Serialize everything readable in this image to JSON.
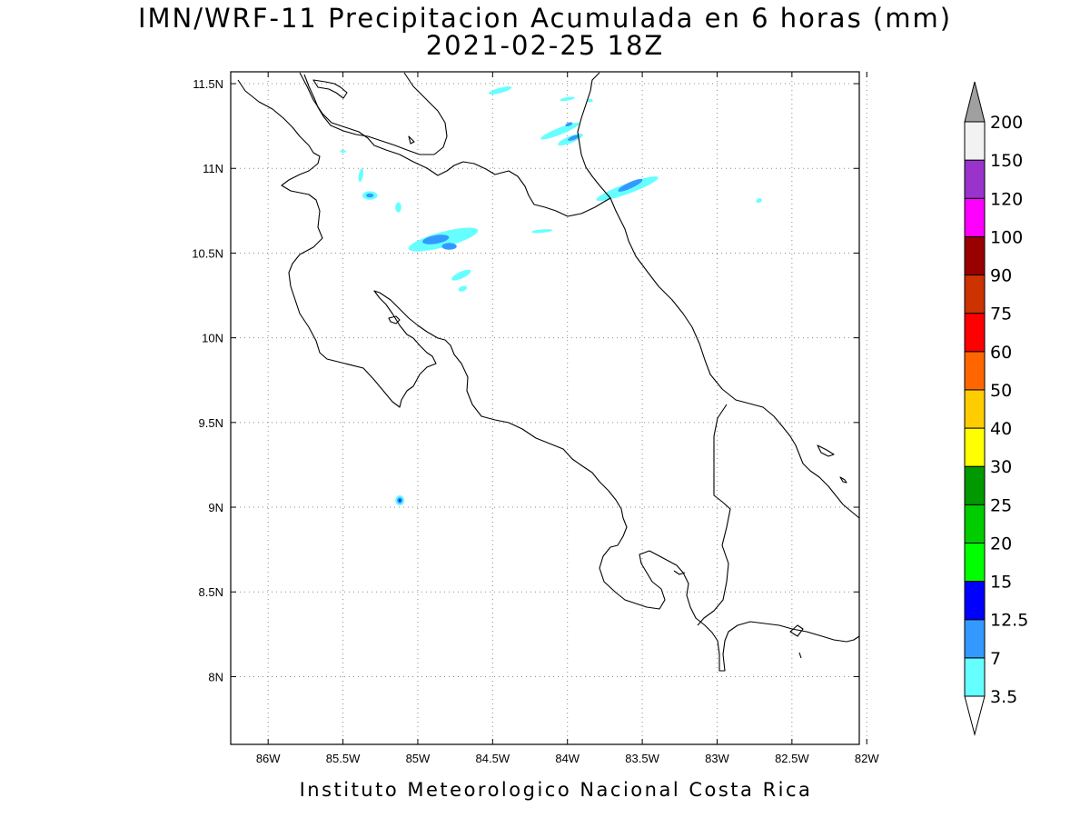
{
  "title": {
    "line1": "IMN/WRF-11 Precipitacion Acumulada en 6 horas (mm)",
    "line2": "2021-02-25 18Z"
  },
  "footer": "Instituto Meteorologico Nacional Costa Rica",
  "map": {
    "lon_range": [
      -86.25,
      -82.05
    ],
    "lat_range": [
      7.6,
      11.57
    ],
    "x_ticks": [
      {
        "value": -86.0,
        "label": "86W"
      },
      {
        "value": -85.5,
        "label": "85.5W"
      },
      {
        "value": -85.0,
        "label": "85W"
      },
      {
        "value": -84.5,
        "label": "84.5W"
      },
      {
        "value": -84.0,
        "label": "84W"
      },
      {
        "value": -83.5,
        "label": "83.5W"
      },
      {
        "value": -83.0,
        "label": "83W"
      },
      {
        "value": -82.5,
        "label": "82.5W"
      },
      {
        "value": -82.0,
        "label": "82W"
      }
    ],
    "y_ticks": [
      {
        "value": 11.5,
        "label": "11.5N"
      },
      {
        "value": 11.0,
        "label": "11N"
      },
      {
        "value": 10.5,
        "label": "10.5N"
      },
      {
        "value": 10.0,
        "label": "10N"
      },
      {
        "value": 9.5,
        "label": "9.5N"
      },
      {
        "value": 9.0,
        "label": "9N"
      },
      {
        "value": 8.5,
        "label": "8.5N"
      },
      {
        "value": 8.0,
        "label": "8N"
      }
    ],
    "grid": true
  },
  "colorbar": {
    "labels": [
      "3.5",
      "7",
      "12.5",
      "15",
      "20",
      "25",
      "30",
      "40",
      "50",
      "60",
      "75",
      "90",
      "100",
      "120",
      "150",
      "200"
    ],
    "colors": [
      "#66ffff",
      "#3399ff",
      "#0000ff",
      "#00ff00",
      "#00cc00",
      "#009900",
      "#ffff00",
      "#ffcc00",
      "#ff6600",
      "#ff0000",
      "#cc3300",
      "#990000",
      "#ff00ff",
      "#9933cc",
      "#f2f2f2",
      "#a0a0a0"
    ]
  },
  "precip_areas": [
    {
      "lon": -84.83,
      "lat": 10.58,
      "rx": 0.24,
      "ry": 0.045,
      "rot": -15,
      "color": "#66ffff"
    },
    {
      "lon": -84.88,
      "lat": 10.58,
      "rx": 0.09,
      "ry": 0.025,
      "rot": -10,
      "color": "#3399ff"
    },
    {
      "lon": -84.79,
      "lat": 10.54,
      "rx": 0.05,
      "ry": 0.02,
      "rot": 0,
      "color": "#3399ff"
    },
    {
      "lon": -85.32,
      "lat": 10.84,
      "rx": 0.05,
      "ry": 0.025,
      "rot": 0,
      "color": "#66ffff"
    },
    {
      "lon": -85.32,
      "lat": 10.84,
      "rx": 0.025,
      "ry": 0.012,
      "rot": 0,
      "color": "#3399ff"
    },
    {
      "lon": -85.13,
      "lat": 10.77,
      "rx": 0.02,
      "ry": 0.03,
      "rot": 0,
      "color": "#66ffff"
    },
    {
      "lon": -85.38,
      "lat": 10.96,
      "rx": 0.015,
      "ry": 0.04,
      "rot": 10,
      "color": "#66ffff"
    },
    {
      "lon": -84.71,
      "lat": 10.37,
      "rx": 0.07,
      "ry": 0.02,
      "rot": -25,
      "color": "#66ffff"
    },
    {
      "lon": -84.7,
      "lat": 10.29,
      "rx": 0.03,
      "ry": 0.015,
      "rot": -20,
      "color": "#66ffff"
    },
    {
      "lon": -83.6,
      "lat": 10.88,
      "rx": 0.22,
      "ry": 0.03,
      "rot": -20,
      "color": "#66ffff"
    },
    {
      "lon": -83.58,
      "lat": 10.9,
      "rx": 0.09,
      "ry": 0.018,
      "rot": -25,
      "color": "#3399ff"
    },
    {
      "lon": -84.05,
      "lat": 11.22,
      "rx": 0.14,
      "ry": 0.02,
      "rot": -22,
      "color": "#66ffff"
    },
    {
      "lon": -83.98,
      "lat": 11.17,
      "rx": 0.09,
      "ry": 0.02,
      "rot": -22,
      "color": "#66ffff"
    },
    {
      "lon": -83.96,
      "lat": 11.18,
      "rx": 0.04,
      "ry": 0.012,
      "rot": -22,
      "color": "#3399ff"
    },
    {
      "lon": -83.99,
      "lat": 11.26,
      "rx": 0.025,
      "ry": 0.01,
      "rot": -20,
      "color": "#3399ff"
    },
    {
      "lon": -84.0,
      "lat": 11.41,
      "rx": 0.05,
      "ry": 0.01,
      "rot": -10,
      "color": "#66ffff"
    },
    {
      "lon": -84.45,
      "lat": 11.46,
      "rx": 0.08,
      "ry": 0.015,
      "rot": -15,
      "color": "#66ffff"
    },
    {
      "lon": -84.17,
      "lat": 10.63,
      "rx": 0.07,
      "ry": 0.01,
      "rot": -5,
      "color": "#66ffff"
    },
    {
      "lon": -83.85,
      "lat": 11.4,
      "rx": 0.02,
      "ry": 0.01,
      "rot": 0,
      "color": "#66ffff"
    },
    {
      "lon": -82.72,
      "lat": 10.81,
      "rx": 0.02,
      "ry": 0.012,
      "rot": -20,
      "color": "#66ffff"
    },
    {
      "lon": -85.5,
      "lat": 11.1,
      "rx": 0.02,
      "ry": 0.008,
      "rot": 0,
      "color": "#66ffff"
    },
    {
      "lon": -85.12,
      "lat": 9.04,
      "rx": 0.03,
      "ry": 0.03,
      "rot": 0,
      "color": "#66ffff"
    },
    {
      "lon": -85.12,
      "lat": 9.04,
      "rx": 0.018,
      "ry": 0.018,
      "rot": 0,
      "color": "#3399ff"
    },
    {
      "lon": -85.12,
      "lat": 9.04,
      "rx": 0.007,
      "ry": 0.007,
      "rot": 0,
      "color": "#0000ff"
    }
  ]
}
